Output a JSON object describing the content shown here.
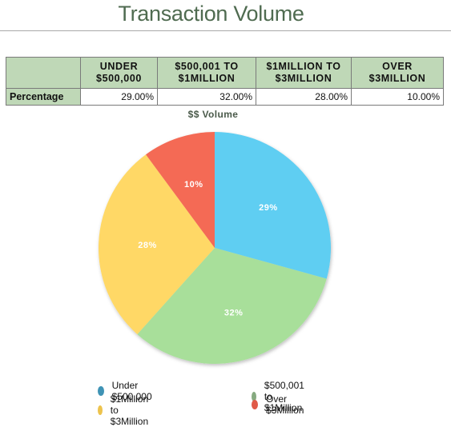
{
  "title": "Transaction Volume",
  "table": {
    "headers": [
      "",
      "UNDER $500,000",
      "$500,001 TO $1MILLION",
      "$1MILLION TO $3MILLION",
      "OVER $3MILLION"
    ],
    "header_lines": [
      [
        "",
        ""
      ],
      [
        "UNDER",
        "$500,000"
      ],
      [
        "$500,001 TO",
        "$1MILLION"
      ],
      [
        "$1MILLION TO",
        "$3MILLION"
      ],
      [
        "OVER",
        "$3MILLION"
      ]
    ],
    "row_label": "Percentage",
    "values": [
      "29.00%",
      "32.00%",
      "28.00%",
      "10.00%"
    ]
  },
  "chart_data": {
    "type": "pie",
    "title": "$$ Volume",
    "categories": [
      "Under $500,000",
      "$500,001 to $1Million",
      "$1Million to $3Million",
      "Over $3Million"
    ],
    "values": [
      29,
      32,
      28,
      10
    ],
    "labels": [
      "29%",
      "32%",
      "28%",
      "10%"
    ],
    "colors": [
      "#5fcef2",
      "#a8df9a",
      "#ffd866",
      "#f46a55"
    ],
    "legend_colors": [
      "#3f93b5",
      "#86aa80",
      "#edc34d",
      "#e05a48"
    ],
    "legend_position": "bottom"
  }
}
